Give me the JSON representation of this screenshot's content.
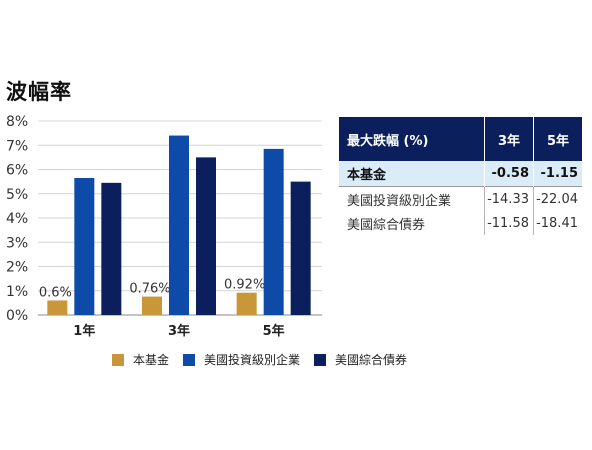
{
  "title": "波幅率",
  "chart_data": {
    "type": "bar",
    "categories": [
      "1年",
      "3年",
      "5年"
    ],
    "series": [
      {
        "name": "本基金",
        "values": [
          0.6,
          0.76,
          0.92
        ],
        "color": "#c9973a",
        "labels": [
          "0.6%",
          "0.76%",
          "0.92%"
        ]
      },
      {
        "name": "美國投資級別企業",
        "values": [
          5.65,
          7.4,
          6.85
        ],
        "color": "#0e4aa8"
      },
      {
        "name": "美國綜合債券",
        "values": [
          5.45,
          6.5,
          5.5
        ],
        "color": "#0a1f5c"
      }
    ],
    "ylim": [
      0,
      8
    ],
    "yticks": [
      0,
      1,
      2,
      3,
      4,
      5,
      6,
      7,
      8
    ],
    "ytick_labels": [
      "0%",
      "1%",
      "2%",
      "3%",
      "4%",
      "5%",
      "6%",
      "7%",
      "8%"
    ],
    "grid": true,
    "legend": "bottom"
  },
  "table": {
    "header": [
      "最大跌幅 (%)",
      "3年",
      "5年"
    ],
    "rows": [
      {
        "name": "本基金",
        "v3": "-0.58",
        "v5": "-1.15"
      },
      {
        "name": "美國投資級別企業",
        "v3": "-14.33",
        "v5": "-22.04"
      },
      {
        "name": "美國綜合債券",
        "v3": "-11.58",
        "v5": "-18.41"
      }
    ]
  }
}
